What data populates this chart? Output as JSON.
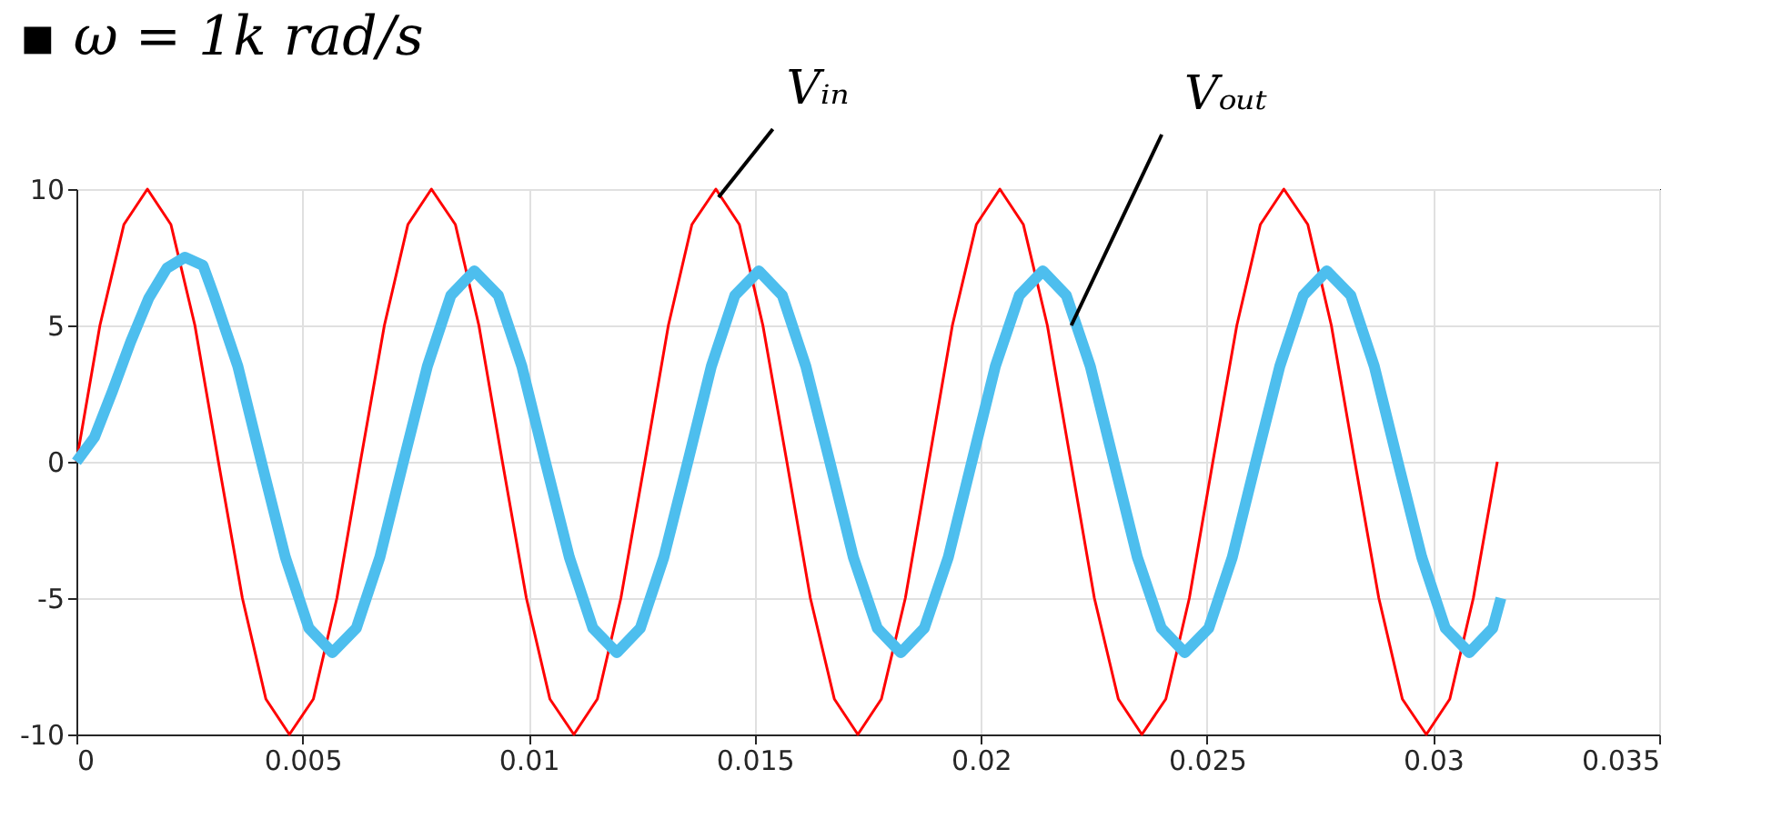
{
  "chart_data": {
    "type": "line",
    "title": "▪  ω = 1k rad/s",
    "xlim": [
      0,
      0.035
    ],
    "xticks": [
      0,
      0.005,
      0.01,
      0.015,
      0.02,
      0.025,
      0.03,
      0.035
    ],
    "ylim": [
      -10,
      10
    ],
    "yticks": [
      -10,
      -5,
      0,
      5,
      10
    ],
    "grid": true,
    "marker": "none",
    "line_style": "solid",
    "series": [
      {
        "color": "#ff0000",
        "x": [
          0,
          0.00052,
          0.00105,
          0.00157,
          0.00209,
          0.00262,
          0.00314,
          0.00367,
          0.00419,
          0.00471,
          0.00524,
          0.00576,
          0.00628,
          0.00681,
          0.00733,
          0.00785,
          0.00838,
          0.0089,
          0.00942,
          0.00995,
          0.01047,
          0.011,
          0.01152,
          0.01204,
          0.01257,
          0.01309,
          0.01361,
          0.01414,
          0.01466,
          0.01518,
          0.01571,
          0.01623,
          0.01676,
          0.01728,
          0.0178,
          0.01833,
          0.01885,
          0.01937,
          0.0199,
          0.02042,
          0.02094,
          0.02147,
          0.02199,
          0.02251,
          0.02304,
          0.02356,
          0.02409,
          0.02461,
          0.02513,
          0.02566,
          0.02618,
          0.0267,
          0.02723,
          0.02775,
          0.02827,
          0.0288,
          0.02932,
          0.02985,
          0.03037,
          0.03089,
          0.03142
        ],
        "values": [
          0,
          5,
          8.7,
          10,
          8.7,
          5,
          0,
          -5,
          -8.7,
          -10,
          -8.7,
          -5,
          0,
          5,
          8.7,
          10,
          8.7,
          5,
          0,
          -5,
          -8.7,
          -10,
          -8.7,
          -5,
          0,
          5,
          8.7,
          10,
          8.7,
          5,
          0,
          -5,
          -8.7,
          -10,
          -8.7,
          -5,
          0,
          5,
          8.7,
          10,
          8.7,
          5,
          0,
          -5,
          -8.7,
          -10,
          -8.7,
          -5,
          0,
          5,
          8.7,
          10,
          8.7,
          5,
          0,
          -5,
          -8.7,
          -10,
          -8.7,
          -5,
          0
        ]
      },
      {
        "color": "#4dbeee",
        "x": [
          0,
          0.0004,
          0.0008,
          0.0012,
          0.0016,
          0.002,
          0.0024,
          0.0028,
          0.00304,
          0.00357,
          0.00409,
          0.00462,
          0.00514,
          0.00566,
          0.00619,
          0.00671,
          0.00723,
          0.00776,
          0.00828,
          0.0088,
          0.00933,
          0.00985,
          0.01037,
          0.0109,
          0.01142,
          0.01195,
          0.01247,
          0.01299,
          0.01352,
          0.01404,
          0.01456,
          0.01509,
          0.01561,
          0.01613,
          0.01666,
          0.01718,
          0.01771,
          0.01823,
          0.01875,
          0.01928,
          0.0198,
          0.02032,
          0.02085,
          0.02137,
          0.02189,
          0.02242,
          0.02294,
          0.02346,
          0.02399,
          0.02451,
          0.02504,
          0.02556,
          0.02608,
          0.02661,
          0.02713,
          0.02765,
          0.02818,
          0.0287,
          0.02922,
          0.02975,
          0.03027,
          0.0308,
          0.03132,
          0.0315
        ],
        "values": [
          0,
          0.9,
          2.6,
          4.4,
          6.0,
          7.1,
          7.5,
          7.2,
          6.1,
          3.5,
          0,
          -3.5,
          -6.1,
          -7,
          -6.1,
          -3.5,
          0,
          3.5,
          6.1,
          7,
          6.1,
          3.5,
          0,
          -3.5,
          -6.1,
          -7,
          -6.1,
          -3.5,
          0,
          3.5,
          6.1,
          7,
          6.1,
          3.5,
          0,
          -3.5,
          -6.1,
          -7,
          -6.1,
          -3.5,
          0,
          3.5,
          6.1,
          7,
          6.1,
          3.5,
          0,
          -3.5,
          -6.1,
          -7,
          -6.1,
          -3.5,
          0,
          3.5,
          6.1,
          7,
          6.1,
          3.5,
          0,
          -3.5,
          -6.1,
          -7,
          -6.1,
          -5.0
        ]
      }
    ],
    "annotations": [
      {
        "text": "Vᵢₙ",
        "x": 0.0142,
        "y": 9.7
      },
      {
        "text": "Vₒᵤₜ",
        "x": 0.022,
        "y": 5
      }
    ]
  }
}
